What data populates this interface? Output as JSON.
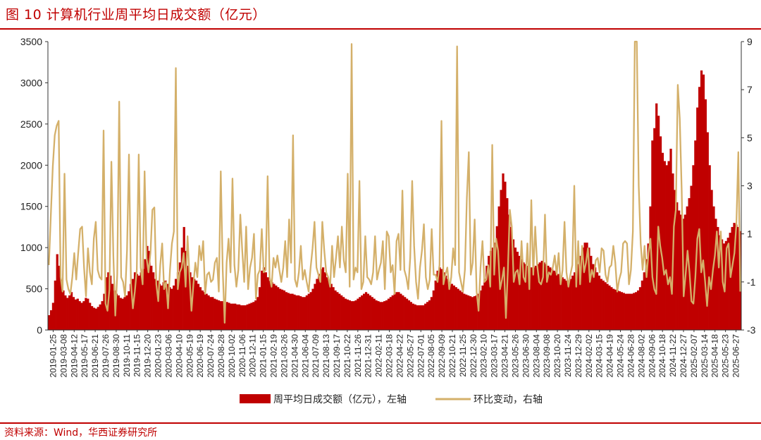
{
  "figure": {
    "title": "图 10  计算机行业周平均日成交额（亿元）",
    "source": "资料来源：Wind，华西证券研究所"
  },
  "colors": {
    "bar": "#c00000",
    "line": "#d4b06a",
    "rule": "#c00000"
  },
  "chart_data": {
    "type": "bar",
    "title": "",
    "xlabel": "",
    "ylabel_left": "",
    "ylabel_right": "",
    "ylim_left": [
      0,
      3500
    ],
    "ylim_right": [
      -3,
      9
    ],
    "left_ticks": [
      0,
      500,
      1000,
      1500,
      2000,
      2500,
      3000,
      3500
    ],
    "right_ticks": [
      "-3",
      "-1",
      "1",
      "3",
      "5",
      "7",
      "9"
    ],
    "right_tick_values": [
      -3,
      -1,
      1,
      3,
      5,
      7,
      9
    ],
    "legend_position": "bottom",
    "grid": false,
    "x_tick_labels": [
      "2019-01-25",
      "2019-03-08",
      "2019-04-12",
      "2019-05-17",
      "2019-06-21",
      "2019-07-26",
      "2019-08-30",
      "2019-10-11",
      "2019-11-15",
      "2019-12-20",
      "2020-01-23",
      "2020-03-06",
      "2020-04-10",
      "2020-05-19",
      "2020-06-19",
      "2020-07-24",
      "2020-08-28",
      "2020-10-02",
      "2020-11-06",
      "2020-12-11",
      "2021-01-15",
      "2021-02-19",
      "2021-03-26",
      "2021-04-30",
      "2021-06-04",
      "2021-07-09",
      "2021-08-13",
      "2021-09-17",
      "2021-10-22",
      "2021-11-26",
      "2021-12-31",
      "2022-02-11",
      "2022-03-18",
      "2022-04-22",
      "2022-05-27",
      "2022-07-01",
      "2022-08-05",
      "2022-09-09",
      "2022-10-21",
      "2022-11-25",
      "2022-12-30",
      "2023-02-10",
      "2023-03-17",
      "2023-04-21",
      "2023-05-26",
      "2023-06-30",
      "2023-08-04",
      "2023-09-08",
      "2023-10-20",
      "2023-11-24",
      "2023-12-29",
      "2024-02-02",
      "2024-03-15",
      "2024-04-19",
      "2024-05-24",
      "2024-06-28",
      "2024-08-02",
      "2024-09-06",
      "2024-10-18",
      "2024-11-22",
      "2024-12-27",
      "2025-02-07",
      "2025-03-14",
      "2025-04-18",
      "2025-05-23",
      "2025-06-27"
    ],
    "series": [
      {
        "name": "周平均日成交额（亿元），左轴",
        "type": "bar",
        "axis": "left",
        "values": [
          180,
          240,
          330,
          600,
          920,
          780,
          610,
          480,
          420,
          390,
          420,
          460,
          400,
          370,
          380,
          350,
          330,
          350,
          390,
          380,
          330,
          290,
          270,
          260,
          280,
          310,
          350,
          440,
          640,
          700,
          660,
          560,
          480,
          440,
          420,
          390,
          380,
          400,
          420,
          470,
          560,
          620,
          700,
          680,
          660,
          700,
          740,
          860,
          1020,
          960,
          780,
          700,
          620,
          600,
          560,
          540,
          580,
          600,
          560,
          520,
          500,
          540,
          620,
          700,
          820,
          1000,
          1250,
          960,
          780,
          700,
          640,
          620,
          600,
          560,
          520,
          480,
          460,
          440,
          420,
          400,
          400,
          380,
          370,
          360,
          350,
          350,
          340,
          340,
          330,
          320,
          320,
          320,
          310,
          310,
          300,
          300,
          300,
          310,
          320,
          330,
          340,
          360,
          400,
          520,
          720,
          760,
          700,
          640,
          600,
          580,
          560,
          540,
          520,
          500,
          490,
          480,
          460,
          450,
          440,
          440,
          430,
          420,
          420,
          410,
          400,
          400,
          420,
          440,
          460,
          500,
          560,
          620,
          680,
          740,
          760,
          700,
          640,
          600,
          560,
          520,
          480,
          460,
          440,
          420,
          400,
          380,
          370,
          360,
          350,
          350,
          360,
          380,
          400,
          420,
          440,
          460,
          440,
          420,
          400,
          380,
          360,
          350,
          340,
          340,
          350,
          360,
          380,
          400,
          420,
          440,
          460,
          460,
          440,
          420,
          400,
          380,
          360,
          340,
          320,
          310,
          300,
          300,
          300,
          300,
          320,
          340,
          360,
          400,
          480,
          600,
          720,
          760,
          740,
          700,
          660,
          620,
          580,
          560,
          540,
          520,
          500,
          480,
          460,
          440,
          430,
          420,
          410,
          400,
          410,
          420,
          440,
          480,
          540,
          620,
          780,
          900,
          960,
          1000,
          1060,
          1260,
          1500,
          1700,
          1900,
          1800,
          1600,
          1400,
          1250,
          1100,
          1000,
          950,
          900,
          860,
          820,
          800,
          780,
          760,
          760,
          760,
          780,
          800,
          820,
          840,
          820,
          800,
          780,
          760,
          740,
          720,
          700,
          680,
          660,
          640,
          620,
          600,
          600,
          620,
          660,
          700,
          740,
          800,
          900,
          1000,
          1060,
          1060,
          1000,
          900,
          800,
          760,
          700,
          660,
          620,
          600,
          580,
          560,
          540,
          520,
          500,
          490,
          480,
          470,
          460,
          450,
          440,
          440,
          440,
          440,
          450,
          460,
          480,
          520,
          600,
          700,
          860,
          1050,
          1500,
          2300,
          2450,
          2750,
          2600,
          2350,
          2150,
          2050,
          2000,
          2050,
          2200,
          1900,
          1700,
          1550,
          1450,
          1400,
          1350,
          1400,
          1500,
          1600,
          1750,
          2000,
          2300,
          2700,
          2950,
          3150,
          3100,
          2800,
          2400,
          2000,
          1700,
          1500,
          1350,
          1250,
          1150,
          1100,
          1050,
          1080,
          1120,
          1180,
          1250,
          1300,
          1280,
          1250,
          1200
        ]
      },
      {
        "name": "环比变动，右轴",
        "type": "line",
        "axis": "right",
        "values": [
          -0.3,
          1.8,
          3.8,
          5.1,
          5.5,
          5.7,
          -0.8,
          -1.4,
          3.5,
          -0.9,
          -1.3,
          -1.5,
          -0.8,
          0.2,
          -0.9,
          0.2,
          1.2,
          1.3,
          -0.4,
          -1.6,
          0.4,
          -0.6,
          -1.1,
          0.8,
          1.5,
          -0.5,
          -0.8,
          -0.9,
          5.3,
          -1.9,
          -2.2,
          -1.3,
          4.0,
          0.1,
          -2.4,
          -0.7,
          6.5,
          -0.8,
          -1.0,
          -1.6,
          0.3,
          4.3,
          -1.0,
          -2.1,
          -1.4,
          -0.5,
          4.3,
          -0.4,
          -1.1,
          3.6,
          0.0,
          -0.6,
          0.2,
          2.0,
          2.1,
          -1.1,
          -1.8,
          -0.3,
          0.6,
          -1.3,
          -1.0,
          -2.1,
          -0.5,
          0.6,
          1.1,
          7.9,
          -1.3,
          -0.6,
          -0.4,
          0.2,
          -1.2,
          0.9,
          -0.8,
          -2.2,
          -1.1,
          -0.2,
          -0.8,
          0.5,
          -0.1,
          0.7,
          -1.5,
          -0.7,
          -0.6,
          -1.0,
          -0.9,
          -0.2,
          0.0,
          -1.4,
          3.6,
          -0.5,
          -2.7,
          -0.2,
          0.8,
          -0.6,
          3.3,
          -0.3,
          -1.2,
          -0.5,
          1.8,
          0.3,
          -1.0,
          1.3,
          -1.3,
          -0.4,
          0.0,
          1.0,
          -1.7,
          -0.7,
          -0.5,
          1.2,
          -0.6,
          -0.5,
          3.4,
          -0.8,
          -1.2,
          0.0,
          -0.4,
          0.1,
          -0.5,
          -1.0,
          -0.4,
          0.7,
          -0.8,
          1.6,
          -0.2,
          5.1,
          -0.9,
          -1.2,
          -0.6,
          0.5,
          -0.9,
          -0.5,
          -1.0,
          -1.4,
          -0.4,
          0.4,
          1.5,
          -0.4,
          -0.7,
          -1.0,
          1.5,
          0.3,
          -0.6,
          -0.8,
          -1.2,
          0.5,
          -0.8,
          0.0,
          0.9,
          -0.4,
          1.3,
          -0.1,
          -0.6,
          3.5,
          -1.2,
          8.9,
          -0.9,
          -0.4,
          -0.6,
          3.2,
          -1.3,
          -1.0,
          0.9,
          -0.8,
          -0.9,
          -1.1,
          -0.6,
          0.9,
          -0.9,
          -0.5,
          -0.2,
          0.7,
          -1.3,
          1.1,
          0.9,
          -0.6,
          -0.3,
          -1.5,
          0.7,
          1.0,
          -0.5,
          2.8,
          -0.5,
          -0.8,
          -1.3,
          0.0,
          3.2,
          0.5,
          -1.0,
          -1.7,
          -0.4,
          0.3,
          1.4,
          -0.8,
          -1.3,
          -0.9,
          1.2,
          -0.7,
          -0.7,
          -1.0,
          -0.3,
          5.7,
          -1.1,
          -0.7,
          -0.4,
          -1.3,
          -0.8,
          0.4,
          -0.3,
          8.8,
          -0.6,
          -1.0,
          -1.4,
          -0.5,
          2.5,
          4.4,
          -0.7,
          -0.2,
          1.6,
          -1.4,
          -2.2,
          -0.4,
          0.7,
          -1.0,
          -0.9,
          -0.3,
          -1.2,
          4.7,
          -0.7,
          0.8,
          0.3,
          -1.3,
          -0.9,
          -0.4,
          -2.5,
          -0.5,
          2.0,
          1.3,
          -1.0,
          -0.6,
          -0.5,
          -1.1,
          0.7,
          -0.8,
          -1.0,
          0.6,
          -1.3,
          2.4,
          -0.7,
          1.3,
          -0.3,
          -1.0,
          -1.1,
          -0.8,
          1.8,
          -1.0,
          -0.6,
          -0.7,
          -0.4,
          0.1,
          -0.7,
          0.2,
          -1.1,
          -0.5,
          1.5,
          -0.6,
          -1.2,
          -0.7,
          -0.3,
          3.0,
          -1.2,
          0.7,
          -1.1,
          0.5,
          -0.6,
          -0.2,
          0.4,
          -1.0,
          -0.5,
          -0.8,
          -0.1,
          0.0,
          -0.6,
          0.4,
          0.3,
          -0.7,
          -1.0,
          -0.4,
          -0.3,
          0.5,
          -0.2,
          -1.4,
          -0.9,
          -0.6,
          0.6,
          0.7,
          0.6,
          -1.1,
          -0.5,
          1.1,
          9.0,
          9.0,
          3.0,
          0.6,
          -0.5,
          0.5,
          -0.8,
          0.2,
          0.8,
          -0.8,
          -1.3,
          -1.5,
          1.3,
          0.5,
          0.0,
          -0.7,
          -0.5,
          -1.1,
          -0.8,
          -1.5,
          1.3,
          2.0,
          7.2,
          5.8,
          2.8,
          -1.6,
          -0.7,
          0.3,
          -0.6,
          -1.8,
          -1.9,
          -0.8,
          0.8,
          1.2,
          -0.6,
          -0.1,
          -1.0,
          -2.0,
          -0.8,
          -1.3,
          -0.5,
          0.1,
          1.1,
          -0.4,
          1.1,
          -1.0,
          -1.4,
          0.4,
          0.6,
          -0.8,
          -0.3,
          0.2,
          1.4,
          4.4,
          -1.4
        ]
      }
    ]
  }
}
